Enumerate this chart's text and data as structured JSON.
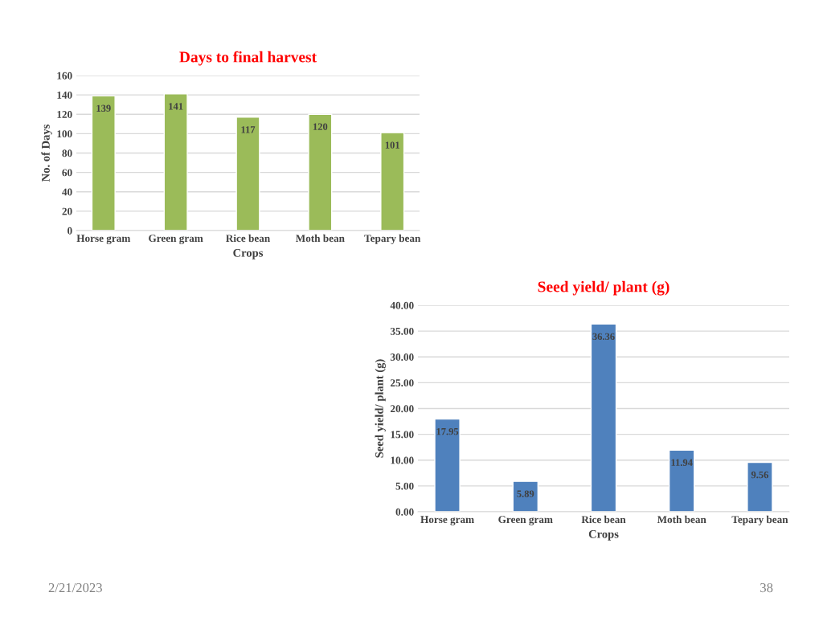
{
  "chart_data": [
    {
      "type": "bar",
      "title": "Days to final harvest",
      "xlabel": "Crops",
      "ylabel": "No. of Days",
      "categories": [
        "Horse gram",
        "Green gram",
        "Rice bean",
        "Moth bean",
        "Tepary bean"
      ],
      "values": [
        139,
        141,
        117,
        120,
        101
      ],
      "color": "#9bbb59",
      "ylim": [
        0,
        160
      ],
      "yticks": [
        0,
        20,
        40,
        60,
        80,
        100,
        120,
        140,
        160
      ],
      "grid": "y",
      "data_labels": true
    },
    {
      "type": "bar",
      "title": "Seed yield/ plant (g)",
      "xlabel": "Crops",
      "ylabel": "Seed yield/ plant (g)",
      "categories": [
        "Horse gram",
        "Green gram",
        "Rice bean",
        "Moth bean",
        "Tepary bean"
      ],
      "values": [
        17.95,
        5.89,
        36.36,
        11.94,
        9.56
      ],
      "color": "#4f81bd",
      "ylim": [
        0,
        40
      ],
      "yticks": [
        {
          "value": 0,
          "label": "0.00"
        },
        {
          "value": 5,
          "label": "5.00"
        },
        {
          "value": 10,
          "label": "10.00"
        },
        {
          "value": 15,
          "label": "15.00"
        },
        {
          "value": 20,
          "label": "20.00"
        },
        {
          "value": 25,
          "label": "25.00"
        },
        {
          "value": 30,
          "label": "30.00"
        },
        {
          "value": 35,
          "label": "35.00"
        },
        {
          "value": 40,
          "label": "40.00"
        }
      ],
      "grid": "y",
      "value_labels": [
        "17.95",
        "5.89",
        "36.36",
        "11.94",
        "9.56"
      ],
      "annotations": [
        "2/21/2023",
        "38"
      ]
    }
  ]
}
